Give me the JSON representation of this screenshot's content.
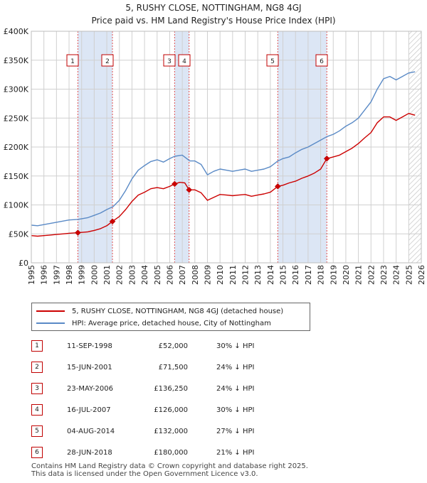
{
  "title_line1": "5, RUSHY CLOSE, NOTTINGHAM, NG8 4GJ",
  "title_line2": "Price paid vs. HM Land Registry's House Price Index (HPI)",
  "colors": {
    "property": "#cc0000",
    "hpi": "#5a8ac6",
    "shade": "#dce6f5",
    "grid": "#d0d0d0",
    "vline": "#e05050"
  },
  "legend": {
    "property_label": "5, RUSHY CLOSE, NOTTINGHAM, NG8 4GJ (detached house)",
    "hpi_label": "HPI: Average price, detached house, City of Nottingham"
  },
  "chart_data": {
    "type": "line",
    "xlim": [
      1995,
      2026
    ],
    "ylim": [
      0,
      400000
    ],
    "x_ticks": [
      "1995",
      "1996",
      "1997",
      "1998",
      "1999",
      "2000",
      "2001",
      "2002",
      "2003",
      "2004",
      "2005",
      "2006",
      "2007",
      "2008",
      "2009",
      "2010",
      "2011",
      "2012",
      "2013",
      "2014",
      "2015",
      "2016",
      "2017",
      "2018",
      "2019",
      "2020",
      "2021",
      "2022",
      "2023",
      "2024",
      "2025",
      "2026"
    ],
    "y_ticks": [
      {
        "value": 0,
        "label": "£0"
      },
      {
        "value": 50000,
        "label": "£50K"
      },
      {
        "value": 100000,
        "label": "£100K"
      },
      {
        "value": 150000,
        "label": "£150K"
      },
      {
        "value": 200000,
        "label": "£200K"
      },
      {
        "value": 250000,
        "label": "£250K"
      },
      {
        "value": 300000,
        "label": "£300K"
      },
      {
        "value": 350000,
        "label": "£350K"
      },
      {
        "value": 400000,
        "label": "£400K"
      }
    ],
    "series": [
      {
        "name": "HPI: Average price, detached house, City of Nottingham",
        "x": [
          1995.0,
          1995.5,
          1996.0,
          1996.5,
          1997.0,
          1997.5,
          1998.0,
          1998.7,
          1999.5,
          2000.0,
          2000.5,
          2001.0,
          2001.5,
          2002.0,
          2002.5,
          2003.0,
          2003.5,
          2004.0,
          2004.5,
          2005.0,
          2005.5,
          2006.0,
          2006.4,
          2007.0,
          2007.6,
          2008.0,
          2008.5,
          2009.0,
          2009.5,
          2010.0,
          2010.5,
          2011.0,
          2011.5,
          2012.0,
          2012.5,
          2013.0,
          2013.5,
          2014.0,
          2014.6,
          2015.0,
          2015.5,
          2016.0,
          2016.5,
          2017.0,
          2017.5,
          2018.0,
          2018.5,
          2019.0,
          2019.5,
          2020.0,
          2020.5,
          2021.0,
          2021.5,
          2022.0,
          2022.5,
          2023.0,
          2023.5,
          2024.0,
          2024.5,
          2025.0,
          2025.5
        ],
        "values": [
          65000,
          64000,
          66000,
          68000,
          70000,
          72000,
          74000,
          75000,
          78000,
          82000,
          86000,
          92000,
          97000,
          108000,
          125000,
          145000,
          160000,
          168000,
          175000,
          178000,
          174000,
          180000,
          184000,
          186000,
          176000,
          176000,
          170000,
          152000,
          158000,
          162000,
          160000,
          158000,
          160000,
          162000,
          158000,
          160000,
          162000,
          166000,
          176000,
          180000,
          183000,
          190000,
          196000,
          200000,
          206000,
          212000,
          218000,
          222000,
          228000,
          236000,
          242000,
          250000,
          264000,
          278000,
          300000,
          318000,
          322000,
          316000,
          322000,
          328000,
          330000
        ]
      },
      {
        "name": "5, RUSHY CLOSE, NOTTINGHAM, NG8 4GJ (detached house)",
        "x": [
          1995.0,
          1995.5,
          1996.0,
          1996.5,
          1997.0,
          1997.5,
          1998.0,
          1998.7,
          1999.0,
          1999.5,
          2000.0,
          2000.5,
          2001.0,
          2001.45,
          2002.0,
          2002.5,
          2003.0,
          2003.5,
          2004.0,
          2004.5,
          2005.0,
          2005.5,
          2006.0,
          2006.39,
          2006.8,
          2007.2,
          2007.54,
          2008.0,
          2008.5,
          2009.0,
          2009.5,
          2010.0,
          2010.5,
          2011.0,
          2011.5,
          2012.0,
          2012.5,
          2013.0,
          2013.5,
          2014.0,
          2014.59,
          2015.0,
          2015.5,
          2016.0,
          2016.5,
          2017.0,
          2017.5,
          2018.0,
          2018.49,
          2019.0,
          2019.5,
          2020.0,
          2020.5,
          2021.0,
          2021.5,
          2022.0,
          2022.5,
          2023.0,
          2023.5,
          2024.0,
          2024.5,
          2025.0,
          2025.5
        ],
        "values": [
          47000,
          46000,
          47000,
          48000,
          49000,
          50000,
          51000,
          52000,
          52500,
          53500,
          56000,
          59000,
          64000,
          71500,
          80000,
          92000,
          106000,
          117000,
          122000,
          128000,
          130000,
          128000,
          132000,
          136250,
          139000,
          138000,
          126000,
          126000,
          121000,
          108000,
          113000,
          118000,
          117000,
          116000,
          117000,
          118000,
          115000,
          117000,
          119000,
          122000,
          132000,
          134000,
          138000,
          141000,
          146000,
          150000,
          155000,
          162000,
          180000,
          183000,
          186000,
          192000,
          198000,
          206000,
          216000,
          225000,
          242000,
          252000,
          252000,
          246000,
          252000,
          258000,
          255000
        ]
      }
    ],
    "sales": [
      {
        "n": "1",
        "x": 1998.7,
        "price": 52000
      },
      {
        "n": "2",
        "x": 2001.45,
        "price": 71500
      },
      {
        "n": "3",
        "x": 2006.39,
        "price": 136250
      },
      {
        "n": "4",
        "x": 2007.54,
        "price": 126000
      },
      {
        "n": "5",
        "x": 2014.59,
        "price": 132000
      },
      {
        "n": "6",
        "x": 2018.49,
        "price": 180000
      }
    ],
    "shaded_ranges": [
      [
        1998.7,
        2001.45
      ],
      [
        2006.39,
        2007.54
      ],
      [
        2014.59,
        2018.49
      ]
    ],
    "hatched_from": 2025.0
  },
  "rows": [
    {
      "n": "1",
      "date": "11-SEP-1998",
      "price": "£52,000",
      "hpi": "30% ↓ HPI"
    },
    {
      "n": "2",
      "date": "15-JUN-2001",
      "price": "£71,500",
      "hpi": "24% ↓ HPI"
    },
    {
      "n": "3",
      "date": "23-MAY-2006",
      "price": "£136,250",
      "hpi": "24% ↓ HPI"
    },
    {
      "n": "4",
      "date": "16-JUL-2007",
      "price": "£126,000",
      "hpi": "30% ↓ HPI"
    },
    {
      "n": "5",
      "date": "04-AUG-2014",
      "price": "£132,000",
      "hpi": "27% ↓ HPI"
    },
    {
      "n": "6",
      "date": "28-JUN-2018",
      "price": "£180,000",
      "hpi": "21% ↓ HPI"
    }
  ],
  "footer_line1": "Contains HM Land Registry data © Crown copyright and database right 2025.",
  "footer_line2": "This data is licensed under the Open Government Licence v3.0."
}
